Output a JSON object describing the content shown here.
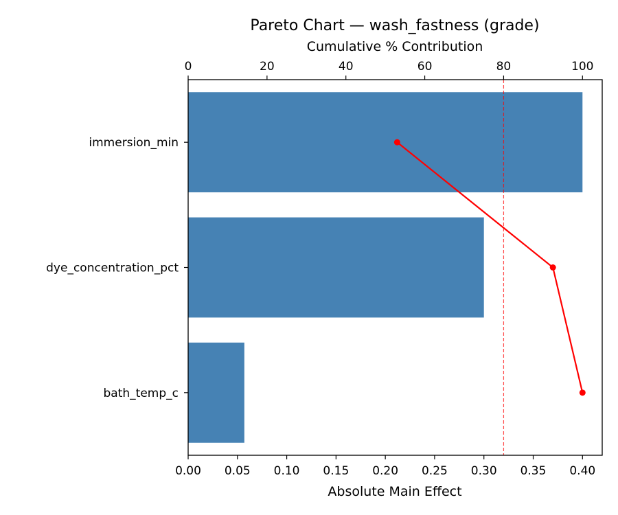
{
  "chart_data": {
    "type": "bar",
    "orientation": "horizontal",
    "title": "Pareto Chart — wash_fastness (grade)",
    "xlabel": "Absolute Main Effect",
    "x2label": "Cumulative % Contribution",
    "categories": [
      "immersion_min",
      "dye_concentration_pct",
      "bath_temp_c"
    ],
    "series": [
      {
        "name": "",
        "kind": "bar",
        "axis": "bottom",
        "values": [
          0.4,
          0.3,
          0.057
        ],
        "color": "#4682b4"
      },
      {
        "name": "",
        "kind": "line",
        "axis": "top",
        "values": [
          53,
          92.5,
          100
        ],
        "color": "#ff0000"
      }
    ],
    "xlim": [
      0,
      0.42
    ],
    "x2lim": [
      0,
      105
    ],
    "xticks": [
      0.0,
      0.05,
      0.1,
      0.15,
      0.2,
      0.25,
      0.3,
      0.35,
      0.4
    ],
    "xtick_labels": [
      "0.00",
      "0.05",
      "0.10",
      "0.15",
      "0.20",
      "0.25",
      "0.30",
      "0.35",
      "0.40"
    ],
    "x2ticks": [
      0,
      20,
      40,
      60,
      80,
      100
    ],
    "x2tick_labels": [
      "0",
      "20",
      "40",
      "60",
      "80",
      "100"
    ],
    "threshold": {
      "value": 80,
      "axis": "top",
      "style": "dashed",
      "color": "#ff0000"
    },
    "grid": false,
    "legend": "none"
  }
}
